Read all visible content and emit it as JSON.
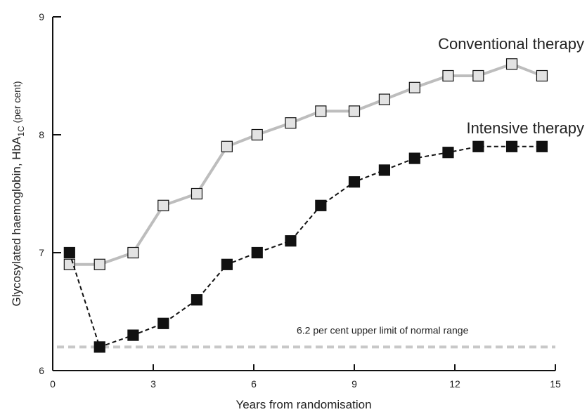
{
  "chart_data": {
    "type": "line",
    "xlabel": "Years from randomisation",
    "ylabel": {
      "main": "Glycosylated haemoglobin, HbA",
      "sub": "1C",
      "suffix": " (per cent)"
    },
    "xlim": [
      0,
      15
    ],
    "ylim": [
      6,
      9
    ],
    "xticks": [
      0,
      3,
      6,
      9,
      12,
      15
    ],
    "yticks": [
      6,
      7,
      8,
      9
    ],
    "grid": false,
    "series": [
      {
        "name": "Conventional therapy",
        "line_color": "#bdbdbd",
        "line_style": "solid",
        "marker_fill": "#e3e3e3",
        "x": [
          0.5,
          1.4,
          2.4,
          3.3,
          4.3,
          5.2,
          6.1,
          7.1,
          8.0,
          9.0,
          9.9,
          10.8,
          11.8,
          12.7,
          13.7,
          14.6
        ],
        "y": [
          6.9,
          6.9,
          7.0,
          7.4,
          7.5,
          7.9,
          8.0,
          8.1,
          8.2,
          8.2,
          8.3,
          8.4,
          8.5,
          8.5,
          8.6,
          8.5
        ]
      },
      {
        "name": "Intensive therapy",
        "line_color": "#111111",
        "line_style": "dashed",
        "marker_fill": "#111111",
        "x": [
          0.5,
          1.4,
          2.4,
          3.3,
          4.3,
          5.2,
          6.1,
          7.1,
          8.0,
          9.0,
          9.9,
          10.8,
          11.8,
          12.7,
          13.7,
          14.6
        ],
        "y": [
          7.0,
          6.2,
          6.3,
          6.4,
          6.6,
          6.9,
          7.0,
          7.1,
          7.4,
          7.6,
          7.7,
          7.8,
          7.85,
          7.9,
          7.9,
          7.9
        ]
      }
    ],
    "reference_line": {
      "y": 6.2,
      "label": "6.2 per cent upper limit of normal range",
      "color": "#c8c8c8",
      "style": "dashed"
    }
  }
}
